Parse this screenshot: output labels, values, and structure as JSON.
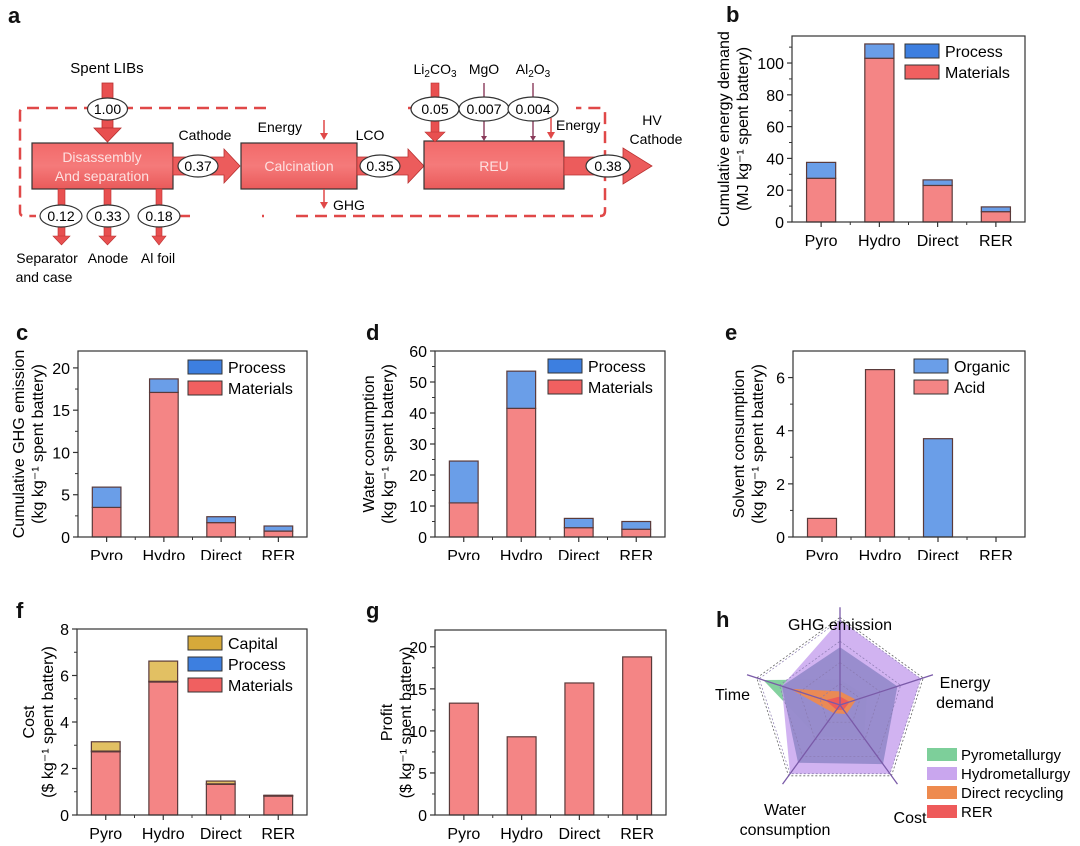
{
  "colors": {
    "materials": "#f48585",
    "materials_legend": "#f06060",
    "process": "#6a9ee8",
    "process_legend": "#3d7fe0",
    "capital": "#e2c063",
    "capital_legend": "#d6a93a",
    "organic": "#6a9ee8",
    "acid": "#f48585",
    "profit": "#f48585",
    "flow_red": "#e85050",
    "box_red": "#ee6464",
    "dash_red": "#e04848"
  },
  "panel_a": {
    "letter": "a",
    "input_label": "Spent LIBs",
    "input_value": "1.00",
    "boxes": [
      "Disassembly",
      "And separation",
      "Calcination",
      "REU"
    ],
    "cathode_label": "Cathode",
    "cathode_value": "0.37",
    "energy_label_1": "Energy",
    "ghg_label": "GHG",
    "lco_label": "LCO",
    "lco_value": "0.35",
    "additives": [
      {
        "label_main": "Li",
        "sub1": "2",
        "mid": "CO",
        "sub2": "3",
        "value": "0.05"
      },
      {
        "label_main": "MgO",
        "sub1": "",
        "mid": "",
        "sub2": "",
        "value": "0.007"
      },
      {
        "label_main": "Al",
        "sub1": "2",
        "mid": "O",
        "sub2": "3",
        "value": "0.004"
      }
    ],
    "energy_label_2": "Energy",
    "output_label_1": "HV",
    "output_label_2": "Cathode",
    "output_value": "0.38",
    "byproducts": [
      {
        "value": "0.12",
        "label": "Separator",
        "label2": "and case"
      },
      {
        "value": "0.33",
        "label": "Anode",
        "label2": ""
      },
      {
        "value": "0.18",
        "label": "Al foil",
        "label2": ""
      }
    ]
  },
  "chart_data": [
    {
      "id": "b",
      "letter": "b",
      "type": "bar",
      "stacked": true,
      "categories": [
        "Pyro",
        "Hydro",
        "Direct",
        "RER"
      ],
      "series": [
        {
          "name": "Materials",
          "color_key": "materials",
          "values": [
            27.5,
            103,
            23,
            6.5
          ]
        },
        {
          "name": "Process",
          "color_key": "process",
          "values": [
            10,
            9,
            3.5,
            3
          ]
        }
      ],
      "legend": [
        "Process",
        "Materials"
      ],
      "ylabel": "Cumulative energy demand",
      "ylabel2": "(MJ kg⁻¹ spent battery)",
      "ylim": [
        0,
        117
      ],
      "yticks": [
        0,
        20,
        40,
        60,
        80,
        100
      ],
      "minor": 10,
      "legend_position": "top-right"
    },
    {
      "id": "c",
      "letter": "c",
      "type": "bar",
      "stacked": true,
      "categories": [
        "Pyro",
        "Hydro",
        "Direct",
        "RER"
      ],
      "series": [
        {
          "name": "Materials",
          "color_key": "materials",
          "values": [
            3.5,
            17.1,
            1.7,
            0.7
          ]
        },
        {
          "name": "Process",
          "color_key": "process",
          "values": [
            2.4,
            1.6,
            0.7,
            0.6
          ]
        }
      ],
      "legend": [
        "Process",
        "Materials"
      ],
      "ylabel": "Cumulative GHG emission",
      "ylabel2": "(kg kg⁻¹ spent battery)",
      "ylim": [
        0,
        22
      ],
      "yticks": [
        0,
        5,
        10,
        15,
        20
      ],
      "minor": 2.5,
      "legend_position": "top-right"
    },
    {
      "id": "d",
      "letter": "d",
      "type": "bar",
      "stacked": true,
      "categories": [
        "Pyro",
        "Hydro",
        "Direct",
        "RER"
      ],
      "series": [
        {
          "name": "Materials",
          "color_key": "materials",
          "values": [
            11,
            41.5,
            3,
            2.5
          ]
        },
        {
          "name": "Process",
          "color_key": "process",
          "values": [
            13.5,
            12,
            3,
            2.5
          ]
        }
      ],
      "legend": [
        "Process",
        "Materials"
      ],
      "ylabel": "Water consumption",
      "ylabel2": "(kg kg⁻¹ spent battery)",
      "ylim": [
        0,
        60
      ],
      "yticks": [
        0,
        10,
        20,
        30,
        40,
        50,
        60
      ],
      "minor": 5,
      "legend_position": "top-right"
    },
    {
      "id": "e",
      "letter": "e",
      "type": "bar",
      "stacked": true,
      "categories": [
        "Pyro",
        "Hydro",
        "Direct",
        "RER"
      ],
      "series": [
        {
          "name": "Acid",
          "color_key": "acid",
          "values": [
            0.7,
            6.3,
            0,
            0
          ]
        },
        {
          "name": "Organic",
          "color_key": "organic",
          "values": [
            0,
            0,
            3.7,
            0
          ]
        }
      ],
      "legend": [
        "Organic",
        "Acid"
      ],
      "ylabel": "Solvent consumption",
      "ylabel2": "(kg kg⁻¹ spent battery)",
      "ylim": [
        0,
        7
      ],
      "yticks": [
        0,
        2,
        4,
        6
      ],
      "minor": 1,
      "legend_position": "top-right"
    },
    {
      "id": "f",
      "letter": "f",
      "type": "bar",
      "stacked": true,
      "categories": [
        "Pyro",
        "Hydro",
        "Direct",
        "RER"
      ],
      "series": [
        {
          "name": "Materials",
          "color_key": "materials",
          "values": [
            2.72,
            5.72,
            1.32,
            0.82
          ]
        },
        {
          "name": "Process",
          "color_key": "process",
          "values": [
            0.03,
            0.03,
            0.02,
            0.01
          ]
        },
        {
          "name": "Capital",
          "color_key": "capital",
          "values": [
            0.4,
            0.87,
            0.12,
            0.02
          ]
        }
      ],
      "legend": [
        "Capital",
        "Process",
        "Materials"
      ],
      "ylabel": "Cost",
      "ylabel2": "($ kg⁻¹ spent battery)",
      "ylim": [
        0,
        8
      ],
      "yticks": [
        0,
        2,
        4,
        6,
        8
      ],
      "minor": 1,
      "legend_position": "top-right"
    },
    {
      "id": "g",
      "letter": "g",
      "type": "bar",
      "stacked": false,
      "categories": [
        "Pyro",
        "Hydro",
        "Direct",
        "RER"
      ],
      "series": [
        {
          "name": "Profit",
          "color_key": "profit",
          "values": [
            13.3,
            9.3,
            15.7,
            18.8
          ]
        }
      ],
      "legend": [],
      "ylabel": "Profit",
      "ylabel2": "($ kg⁻¹ spent battery)",
      "ylim": [
        0,
        22
      ],
      "yticks": [
        0,
        5,
        10,
        15,
        20
      ],
      "minor": 2.5,
      "legend_position": "none"
    },
    {
      "id": "h",
      "letter": "h",
      "type": "radar",
      "axes": [
        "GHG emission",
        "Energy demand",
        "Cost",
        "Water consumption",
        "Time"
      ],
      "axis_label_lines": [
        [
          "GHG emission"
        ],
        [
          "Energy",
          "demand"
        ],
        [
          "Cost"
        ],
        [
          "Water",
          "consumption"
        ],
        [
          "Time"
        ]
      ],
      "rings": 4,
      "series": [
        {
          "name": "Pyrometallurgy",
          "color": "#7dcf9a",
          "values": [
            0.3,
            0.33,
            0.48,
            0.46,
            0.95
          ]
        },
        {
          "name": "Hydrometallurgy",
          "color": "#c9a6ee",
          "values": [
            1.0,
            1.0,
            1.0,
            1.0,
            0.72
          ]
        },
        {
          "name": "Direct recycling",
          "color": "#ee8a4e",
          "values": [
            0.16,
            0.2,
            0.13,
            0.12,
            0.62
          ]
        },
        {
          "name": "RER",
          "color": "#ee5a5a",
          "values": [
            0.1,
            0.12,
            0.07,
            0.07,
            0.18
          ]
        }
      ],
      "inner_overlay_color": "#8f86c8",
      "legend_position": "bottom-right"
    }
  ]
}
